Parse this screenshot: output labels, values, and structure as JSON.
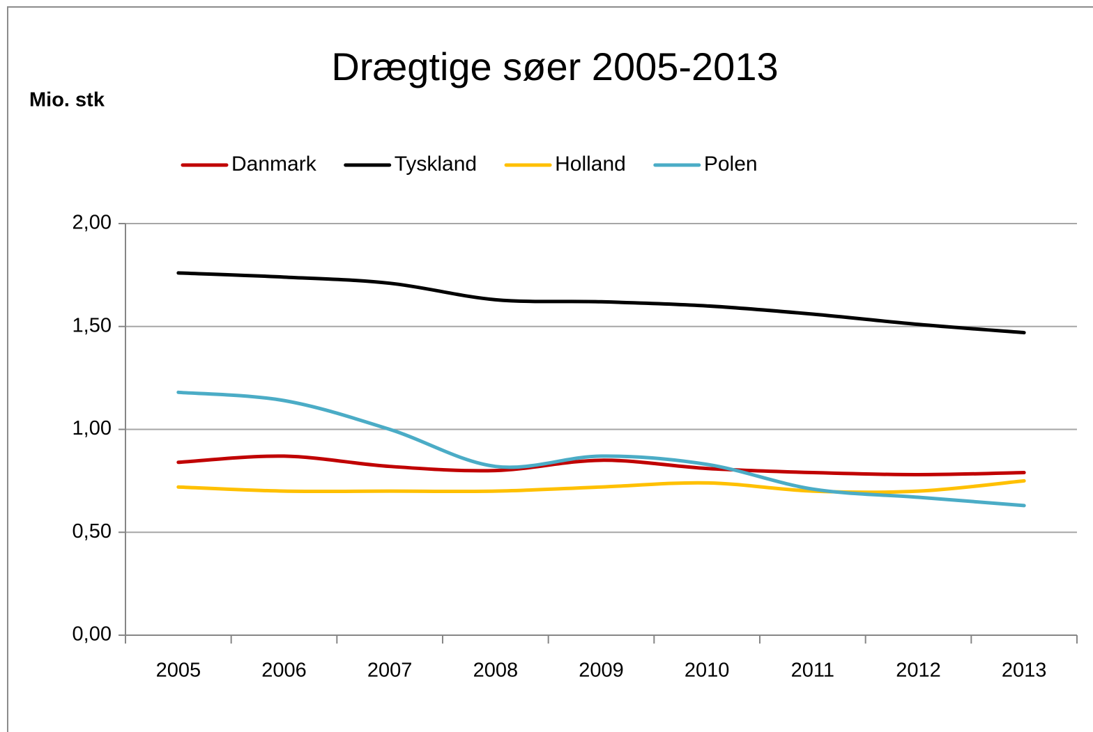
{
  "chart_data": {
    "type": "line",
    "title": "Drægtige søer 2005-2013",
    "y_label": "Mio. stk",
    "categories": [
      "2005",
      "2006",
      "2007",
      "2008",
      "2009",
      "2010",
      "2011",
      "2012",
      "2013"
    ],
    "series": [
      {
        "name": "Danmark",
        "color": "#c00000",
        "values": [
          0.84,
          0.87,
          0.82,
          0.8,
          0.85,
          0.81,
          0.79,
          0.78,
          0.79
        ]
      },
      {
        "name": "Tyskland",
        "color": "#000000",
        "values": [
          1.76,
          1.74,
          1.71,
          1.63,
          1.62,
          1.6,
          1.56,
          1.51,
          1.47
        ]
      },
      {
        "name": "Holland",
        "color": "#ffc000",
        "values": [
          0.72,
          0.7,
          0.7,
          0.7,
          0.72,
          0.74,
          0.7,
          0.7,
          0.75
        ]
      },
      {
        "name": "Polen",
        "color": "#4bacc6",
        "values": [
          1.18,
          1.14,
          1.0,
          0.82,
          0.87,
          0.83,
          0.71,
          0.67,
          0.63
        ]
      }
    ],
    "ylim": [
      0,
      2
    ],
    "yticks": [
      {
        "value": 0,
        "label": "0,00"
      },
      {
        "value": 0.5,
        "label": "0,50"
      },
      {
        "value": 1,
        "label": "1,00"
      },
      {
        "value": 1.5,
        "label": "1,50"
      },
      {
        "value": 2,
        "label": "2,00"
      }
    ],
    "grid": true,
    "legend": "top",
    "smooth": true
  }
}
